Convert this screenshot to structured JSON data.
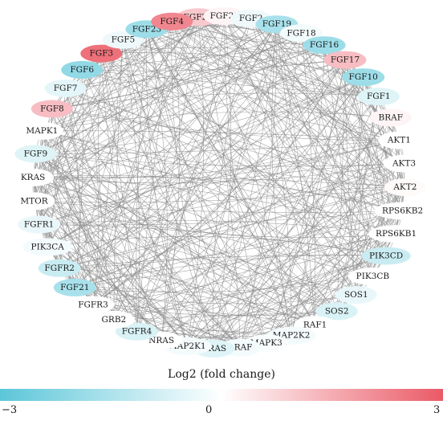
{
  "legend": {
    "title": "Log2 (fold change)",
    "min_label": "−3",
    "mid_label": "0",
    "max_label": "3",
    "min": -3,
    "max": 3,
    "low_color": "#5cc6d9",
    "mid_color": "#ffffff",
    "high_color": "#ea5a66"
  },
  "nodes": [
    {
      "label": "FGF22",
      "log2fc": 1.0
    },
    {
      "label": "FGF20",
      "log2fc": 0.2
    },
    {
      "label": "FGF2",
      "log2fc": -0.3
    },
    {
      "label": "FGF19",
      "log2fc": -1.6
    },
    {
      "label": "FGF18",
      "log2fc": -0.2
    },
    {
      "label": "FGF16",
      "log2fc": -1.8
    },
    {
      "label": "FGF17",
      "log2fc": 1.2
    },
    {
      "label": "FGF10",
      "log2fc": -1.8
    },
    {
      "label": "FGF1",
      "log2fc": -0.6
    },
    {
      "label": "BRAF",
      "log2fc": 0.2
    },
    {
      "label": "AKT1",
      "log2fc": 0.0
    },
    {
      "label": "AKT3",
      "log2fc": 0.0
    },
    {
      "label": "AKT2",
      "log2fc": 0.1
    },
    {
      "label": "RPS6KB2",
      "log2fc": 0.0
    },
    {
      "label": "RPS6KB1",
      "log2fc": 0.0
    },
    {
      "label": "PIK3CD",
      "log2fc": -1.0
    },
    {
      "label": "PIK3CB",
      "log2fc": 0.0
    },
    {
      "label": "SOS1",
      "log2fc": -0.4
    },
    {
      "label": "SOS2",
      "log2fc": -0.7
    },
    {
      "label": "RAF1",
      "log2fc": 0.0
    },
    {
      "label": "MAP2K2",
      "log2fc": -0.2
    },
    {
      "label": "MAPK3",
      "log2fc": -0.1
    },
    {
      "label": "ARAF",
      "log2fc": -0.2
    },
    {
      "label": "HRAS",
      "log2fc": -0.6
    },
    {
      "label": "MAP2K1",
      "log2fc": -0.2
    },
    {
      "label": "NRAS",
      "log2fc": 0.0
    },
    {
      "label": "FGFR4",
      "log2fc": -0.7
    },
    {
      "label": "GRB2",
      "log2fc": 0.0
    },
    {
      "label": "FGFR3",
      "log2fc": 0.0
    },
    {
      "label": "FGF21",
      "log2fc": -1.6
    },
    {
      "label": "FGFR2",
      "log2fc": -1.0
    },
    {
      "label": "PIK3CA",
      "log2fc": -0.2
    },
    {
      "label": "FGFR1",
      "log2fc": -0.4
    },
    {
      "label": "MTOR",
      "log2fc": 0.0
    },
    {
      "label": "KRAS",
      "log2fc": 0.0
    },
    {
      "label": "FGF9",
      "log2fc": -0.6
    },
    {
      "label": "MAPK1",
      "log2fc": 0.0
    },
    {
      "label": "FGF8",
      "log2fc": 1.2
    },
    {
      "label": "FGF7",
      "log2fc": -0.5
    },
    {
      "label": "FGF6",
      "log2fc": -2.0
    },
    {
      "label": "FGF3",
      "log2fc": 2.6
    },
    {
      "label": "FGF5",
      "log2fc": -0.3
    },
    {
      "label": "FGF23",
      "log2fc": -1.8
    },
    {
      "label": "FGF4",
      "log2fc": 2.2
    }
  ]
}
